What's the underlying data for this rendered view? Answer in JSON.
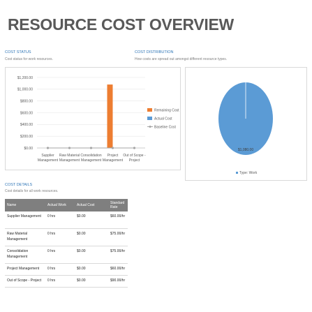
{
  "page": {
    "title": "RESOURCE COST OVERVIEW"
  },
  "cost_status": {
    "title": "COST STATUS",
    "subtitle": "Cost status for work resources."
  },
  "cost_distribution": {
    "title": "COST DISTRIBUTION",
    "subtitle": "How costs are spread out amongst different resource types."
  },
  "cost_details": {
    "title": "COST DETAILS",
    "subtitle": "Cost details for all work resources.",
    "columns": [
      "Name",
      "Actual Work",
      "Actual Cost",
      "Standard Rate"
    ],
    "rows": [
      [
        "Supplier Management",
        "0 hrs",
        "$0.00",
        "$60.00/hr"
      ],
      [
        "Raw Material Management",
        "0 hrs",
        "$0.00",
        "$75.00/hr"
      ],
      [
        "Consolidation Management",
        "0 hrs",
        "$0.00",
        "$75.00/hr"
      ],
      [
        "Project Management",
        "0 hrs",
        "$0.00",
        "$60.00/hr"
      ],
      [
        "Out of Scope - Project",
        "0 hrs",
        "$0.00",
        "$90.00/hr"
      ]
    ]
  },
  "colors": {
    "remaining_cost": "#ed7d31",
    "actual_cost": "#5b9bd5",
    "baseline_cost": "#a5a5a5",
    "pie_work": "#5b9bd5",
    "header_fill": "#7f7f7f",
    "section_title": "#2e75b6"
  },
  "chart_data": [
    {
      "type": "bar",
      "categories": [
        "Supplier Management",
        "Raw Material Management",
        "Consolidation Management",
        "Project Management",
        "Out of Scope - Project"
      ],
      "category_lines": [
        [
          "Supplier",
          "Management"
        ],
        [
          "Raw Material",
          "Management"
        ],
        [
          "Consolidation",
          "Management"
        ],
        [
          "Project",
          "Management"
        ],
        [
          "Out of Scope -",
          "Project"
        ]
      ],
      "series": [
        {
          "name": "Remaining Cost",
          "kind": "bar",
          "color": "#ed7d31",
          "values": [
            0,
            0,
            0,
            1080,
            0
          ]
        },
        {
          "name": "Actual Cost",
          "kind": "bar",
          "color": "#5b9bd5",
          "values": [
            0,
            0,
            0,
            0,
            0
          ]
        },
        {
          "name": "Baseline Cost",
          "kind": "line",
          "color": "#a5a5a5",
          "values": [
            0,
            0,
            0,
            0,
            0
          ]
        }
      ],
      "yticks": [
        "$0.00",
        "$200.00",
        "$400.00",
        "$600.00",
        "$800.00",
        "$1,000.00",
        "$1,200.00"
      ],
      "ylim": [
        0,
        1200
      ],
      "grid": true,
      "legend": "right"
    },
    {
      "type": "pie",
      "slices": [
        {
          "name": "Type: Work",
          "value": 1080,
          "label": "$1,080.00",
          "color": "#5b9bd5"
        }
      ],
      "legend": "bottom"
    }
  ]
}
